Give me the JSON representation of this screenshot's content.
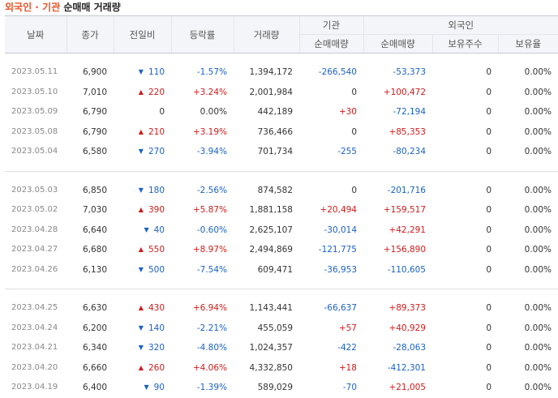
{
  "title": {
    "brand": "외국인 · 기관",
    "rest": "순매매 거래량"
  },
  "headers": {
    "date": "날짜",
    "close": "종가",
    "change": "전일비",
    "rate": "등락률",
    "volume": "거래량",
    "inst_group": "기관",
    "inst_net": "순매매량",
    "foreign_group": "외국인",
    "foreign_net": "순매매량",
    "foreign_hold": "보유주수",
    "foreign_ratio": "보유율"
  },
  "colors": {
    "up": "#d11b1b",
    "down": "#1a62c4",
    "brand": "#e8542a"
  },
  "rows": [
    {
      "date": "2023.05.11",
      "close": "6,900",
      "dir": "down",
      "change": "110",
      "rate": "-1.57%",
      "volume": "1,394,172",
      "inst": "-266,540",
      "foreign": "-53,373",
      "hold": "0",
      "ratio": "0.00%"
    },
    {
      "date": "2023.05.10",
      "close": "7,010",
      "dir": "up",
      "change": "220",
      "rate": "+3.24%",
      "volume": "2,001,984",
      "inst": "0",
      "foreign": "+100,472",
      "hold": "0",
      "ratio": "0.00%"
    },
    {
      "date": "2023.05.09",
      "close": "6,790",
      "dir": "none",
      "change": "0",
      "rate": "0.00%",
      "volume": "442,189",
      "inst": "+30",
      "foreign": "-72,194",
      "hold": "0",
      "ratio": "0.00%"
    },
    {
      "date": "2023.05.08",
      "close": "6,790",
      "dir": "up",
      "change": "210",
      "rate": "+3.19%",
      "volume": "736,466",
      "inst": "0",
      "foreign": "+85,353",
      "hold": "0",
      "ratio": "0.00%"
    },
    {
      "date": "2023.05.04",
      "close": "6,580",
      "dir": "down",
      "change": "270",
      "rate": "-3.94%",
      "volume": "701,734",
      "inst": "-255",
      "foreign": "-80,234",
      "hold": "0",
      "ratio": "0.00%"
    },
    {
      "date": "2023.05.03",
      "close": "6,850",
      "dir": "down",
      "change": "180",
      "rate": "-2.56%",
      "volume": "874,582",
      "inst": "0",
      "foreign": "-201,716",
      "hold": "0",
      "ratio": "0.00%"
    },
    {
      "date": "2023.05.02",
      "close": "7,030",
      "dir": "up",
      "change": "390",
      "rate": "+5.87%",
      "volume": "1,881,158",
      "inst": "+20,494",
      "foreign": "+159,517",
      "hold": "0",
      "ratio": "0.00%"
    },
    {
      "date": "2023.04.28",
      "close": "6,640",
      "dir": "down",
      "change": "40",
      "rate": "-0.60%",
      "volume": "2,625,107",
      "inst": "-30,014",
      "foreign": "+42,291",
      "hold": "0",
      "ratio": "0.00%"
    },
    {
      "date": "2023.04.27",
      "close": "6,680",
      "dir": "up",
      "change": "550",
      "rate": "+8.97%",
      "volume": "2,494,869",
      "inst": "-121,775",
      "foreign": "+156,890",
      "hold": "0",
      "ratio": "0.00%"
    },
    {
      "date": "2023.04.26",
      "close": "6,130",
      "dir": "down",
      "change": "500",
      "rate": "-7.54%",
      "volume": "609,471",
      "inst": "-36,953",
      "foreign": "-110,605",
      "hold": "0",
      "ratio": "0.00%"
    },
    {
      "date": "2023.04.25",
      "close": "6,630",
      "dir": "up",
      "change": "430",
      "rate": "+6.94%",
      "volume": "1,143,441",
      "inst": "-66,637",
      "foreign": "+89,373",
      "hold": "0",
      "ratio": "0.00%"
    },
    {
      "date": "2023.04.24",
      "close": "6,200",
      "dir": "down",
      "change": "140",
      "rate": "-2.21%",
      "volume": "455,059",
      "inst": "+57",
      "foreign": "+40,929",
      "hold": "0",
      "ratio": "0.00%"
    },
    {
      "date": "2023.04.21",
      "close": "6,340",
      "dir": "down",
      "change": "320",
      "rate": "-4.80%",
      "volume": "1,024,357",
      "inst": "-422",
      "foreign": "-28,063",
      "hold": "0",
      "ratio": "0.00%"
    },
    {
      "date": "2023.04.20",
      "close": "6,660",
      "dir": "up",
      "change": "260",
      "rate": "+4.06%",
      "volume": "4,332,850",
      "inst": "+18",
      "foreign": "-412,301",
      "hold": "0",
      "ratio": "0.00%"
    },
    {
      "date": "2023.04.19",
      "close": "6,400",
      "dir": "down",
      "change": "90",
      "rate": "-1.39%",
      "volume": "589,029",
      "inst": "-70",
      "foreign": "+21,005",
      "hold": "0",
      "ratio": "0.00%"
    }
  ]
}
